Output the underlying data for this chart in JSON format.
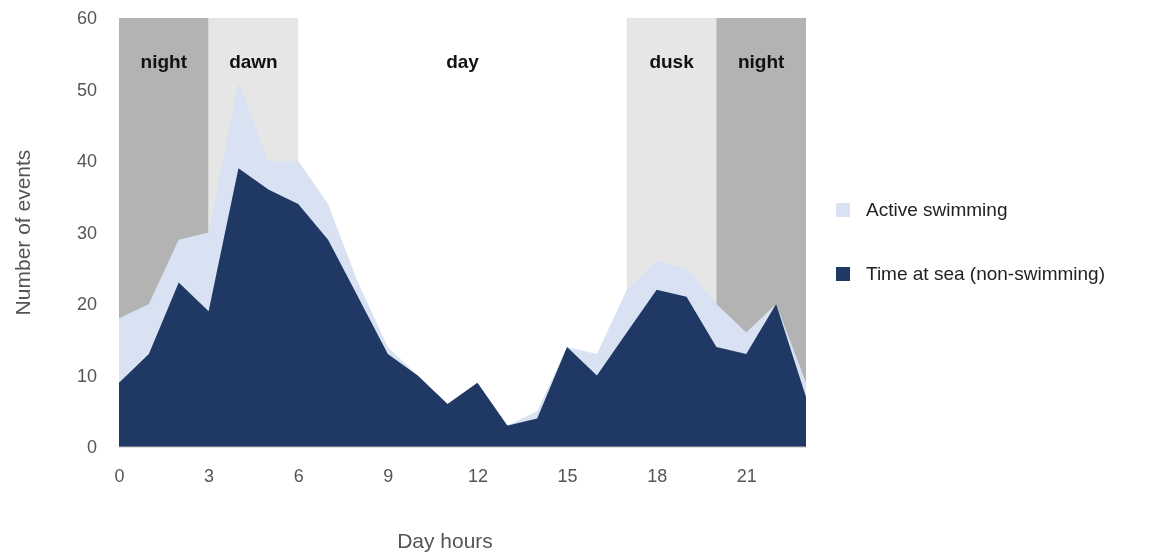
{
  "chart_data": {
    "type": "area",
    "xlabel": "Day hours",
    "ylabel": "Number of events",
    "x": [
      0,
      1,
      2,
      3,
      4,
      5,
      6,
      7,
      8,
      9,
      10,
      11,
      12,
      13,
      14,
      15,
      16,
      17,
      18,
      19,
      20,
      21,
      22,
      23
    ],
    "xlim": [
      0,
      23
    ],
    "xticks": [
      0,
      3,
      6,
      9,
      12,
      15,
      18,
      21
    ],
    "ylim": [
      0,
      60
    ],
    "yticks": [
      0,
      10,
      20,
      30,
      40,
      50,
      60
    ],
    "series": [
      {
        "name": "Active swimming",
        "color": "#d9e2f3",
        "values": [
          18,
          20,
          29,
          30,
          51,
          40,
          40,
          34,
          23,
          14,
          10,
          6,
          9,
          3,
          5,
          14,
          13,
          22,
          26,
          25,
          20,
          16,
          20,
          9
        ]
      },
      {
        "name": "Time at sea (non-swimming)",
        "color": "#1f3864",
        "values": [
          9,
          13,
          23,
          19,
          39,
          36,
          34,
          29,
          21,
          13,
          10,
          6,
          9,
          3,
          4,
          14,
          10,
          16,
          22,
          21,
          14,
          13,
          20,
          7
        ]
      }
    ],
    "bands": [
      {
        "axis": "x",
        "from": 0,
        "to": 3,
        "label": "night",
        "color": "#b3b3b3"
      },
      {
        "axis": "x",
        "from": 3,
        "to": 6,
        "label": "dawn",
        "color": "#e6e6e6"
      },
      {
        "axis": "x",
        "from": 17,
        "to": 20,
        "label": "dusk",
        "color": "#e6e6e6"
      },
      {
        "axis": "x",
        "from": 20,
        "to": 23,
        "label": "night",
        "color": "#b3b3b3"
      }
    ],
    "annotations": [
      "day"
    ],
    "grid": false,
    "legend": "right"
  }
}
